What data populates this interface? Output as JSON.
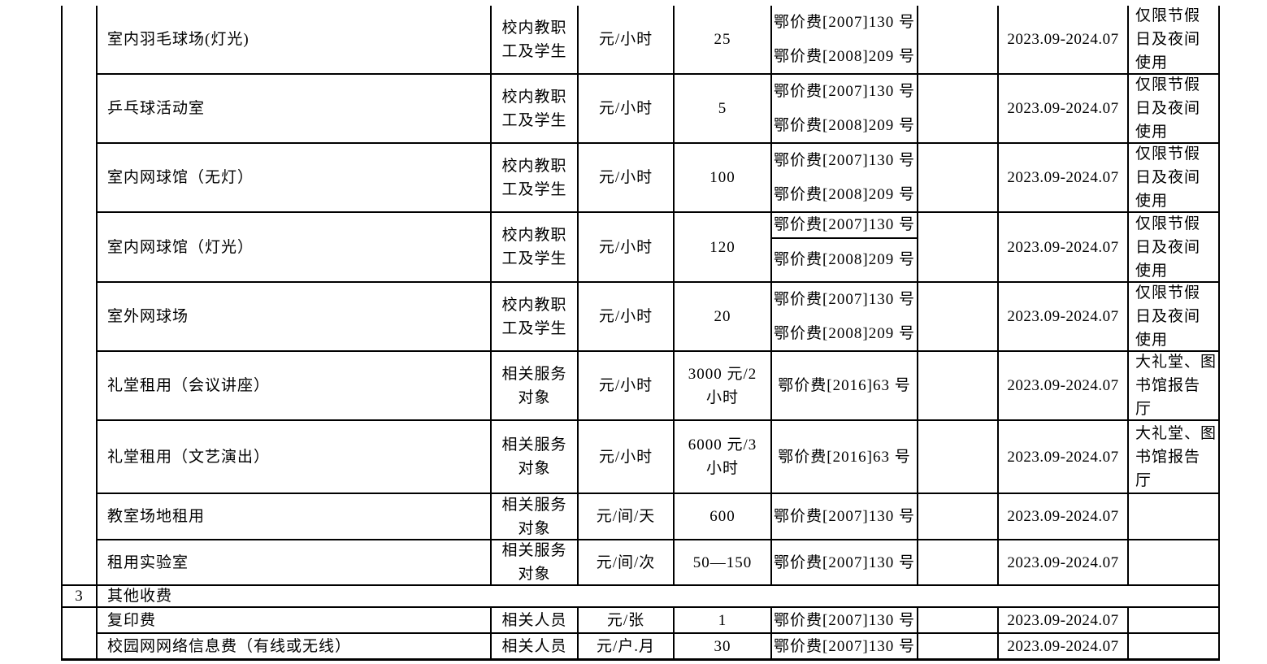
{
  "table": {
    "section_row": {
      "seq": "3",
      "label": "其他收费"
    },
    "rows": [
      {
        "item": "室内羽毛球场(灯光)",
        "target": "校内教职\n工及学生",
        "unit": "元/小时",
        "price": "25",
        "doc1": "鄂价费[2007]130 号",
        "doc2": "鄂价费[2008]209 号",
        "period": "2023.09-2024.07",
        "note": "仅限节假\n日及夜间\n使用"
      },
      {
        "item": "乒乓球活动室",
        "target": "校内教职\n工及学生",
        "unit": "元/小时",
        "price": "5",
        "doc1": "鄂价费[2007]130 号",
        "doc2": "鄂价费[2008]209 号",
        "period": "2023.09-2024.07",
        "note": "仅限节假\n日及夜间\n使用"
      },
      {
        "item": "室内网球馆（无灯）",
        "target": "校内教职\n工及学生",
        "unit": "元/小时",
        "price": "100",
        "doc1": "鄂价费[2007]130 号",
        "doc2": "鄂价费[2008]209 号",
        "period": "2023.09-2024.07",
        "note": "仅限节假\n日及夜间\n使用"
      },
      {
        "item": "室内网球馆（灯光）",
        "target": "校内教职\n工及学生",
        "unit": "元/小时",
        "price": "120",
        "doc1": "鄂价费[2007]130 号",
        "doc2": "鄂价费[2008]209 号",
        "period": "2023.09-2024.07",
        "note": "仅限节假\n日及夜间\n使用"
      },
      {
        "item": "室外网球场",
        "target": "校内教职\n工及学生",
        "unit": "元/小时",
        "price": "20",
        "doc1": "鄂价费[2007]130 号",
        "doc2": "鄂价费[2008]209 号",
        "period": "2023.09-2024.07",
        "note": "仅限节假\n日及夜间\n使用"
      },
      {
        "item": "礼堂租用（会议讲座）",
        "target": "相关服务\n对象",
        "unit": "元/小时",
        "price": "3000 元/2\n小时",
        "doc1": "鄂价费[2016]63 号",
        "doc2": "",
        "period": "2023.09-2024.07",
        "note": "大礼堂、图\n书馆报告\n厅"
      },
      {
        "item": "礼堂租用（文艺演出）",
        "target": "相关服务\n对象",
        "unit": "元/小时",
        "price": "6000 元/3\n小时",
        "doc1": "鄂价费[2016]63 号",
        "doc2": "",
        "period": "2023.09-2024.07",
        "note": "大礼堂、图\n书馆报告\n厅"
      },
      {
        "item": "教室场地租用",
        "target": "相关服务\n对象",
        "unit": "元/间/天",
        "price": "600",
        "doc1": "鄂价费[2007]130 号",
        "doc2": "",
        "period": "2023.09-2024.07",
        "note": ""
      },
      {
        "item": "租用实验室",
        "target": "相关服务\n对象",
        "unit": "元/间/次",
        "price": "50—150",
        "doc1": "鄂价费[2007]130 号",
        "doc2": "",
        "period": "2023.09-2024.07",
        "note": ""
      },
      {
        "item": "复印费",
        "target": "相关人员",
        "unit": "元/张",
        "price": "1",
        "doc1": "鄂价费[2007]130 号",
        "doc2": "",
        "period": "2023.09-2024.07",
        "note": ""
      },
      {
        "item": "校园网网络信息费（有线或无线）",
        "target": "相关人员",
        "unit": "元/户.月",
        "price": "30",
        "doc1": "鄂价费[2007]130 号",
        "doc2": "",
        "period": "2023.09-2024.07",
        "note": ""
      }
    ]
  }
}
